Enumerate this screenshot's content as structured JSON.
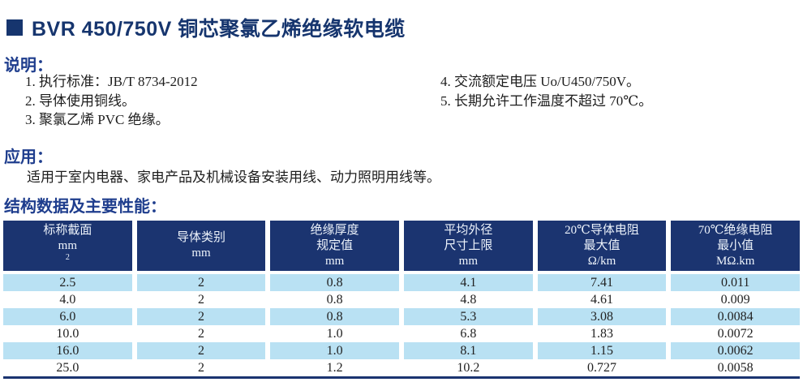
{
  "colors": {
    "navy_header": "#1b3470",
    "title_navy": "#16356e",
    "heading_blue": "#1e3d8d",
    "stripe_light_blue": "#b9e1f3",
    "header_text": "#edf3fb"
  },
  "title": "BVR 450/750V 铜芯聚氯乙烯绝缘软电缆",
  "notes": {
    "heading": "说明：",
    "left_items": [
      "1. 执行标准：JB/T 8734-2012",
      "2. 导体使用铜线。",
      "3. 聚氯乙烯 PVC 绝缘。"
    ],
    "right_items": [
      "4. 交流额定电压 Uo/U450/750V。",
      "5. 长期允许工作温度不超过 70℃。"
    ]
  },
  "application": {
    "heading": "应用：",
    "body": "适用于室内电器、家电产品及机械设备安装用线、动力照明用线等。"
  },
  "table_section": {
    "heading": "结构数据及主要性能：",
    "columns": [
      {
        "line1": "标称截面",
        "line2": "mm",
        "sup": "2"
      },
      {
        "line1": "导体类别",
        "line2": "mm"
      },
      {
        "line1": "绝缘厚度",
        "line2": "规定值",
        "line3": "mm"
      },
      {
        "line1": "平均外径",
        "line2": "尺寸上限",
        "line3": "mm"
      },
      {
        "line1": "20℃导体电阻",
        "line2": "最大值",
        "line3": "Ω/km"
      },
      {
        "line1": "70℃绝缘电阻",
        "line2": "最小值",
        "line3": "MΩ.km"
      }
    ],
    "rows": [
      [
        "2.5",
        "2",
        "0.8",
        "4.1",
        "7.41",
        "0.011"
      ],
      [
        "4.0",
        "2",
        "0.8",
        "4.8",
        "4.61",
        "0.009"
      ],
      [
        "6.0",
        "2",
        "0.8",
        "5.3",
        "3.08",
        "0.0084"
      ],
      [
        "10.0",
        "2",
        "1.0",
        "6.8",
        "1.83",
        "0.0072"
      ],
      [
        "16.0",
        "2",
        "1.0",
        "8.1",
        "1.15",
        "0.0062"
      ],
      [
        "25.0",
        "2",
        "1.2",
        "10.2",
        "0.727",
        "0.0058"
      ]
    ]
  }
}
